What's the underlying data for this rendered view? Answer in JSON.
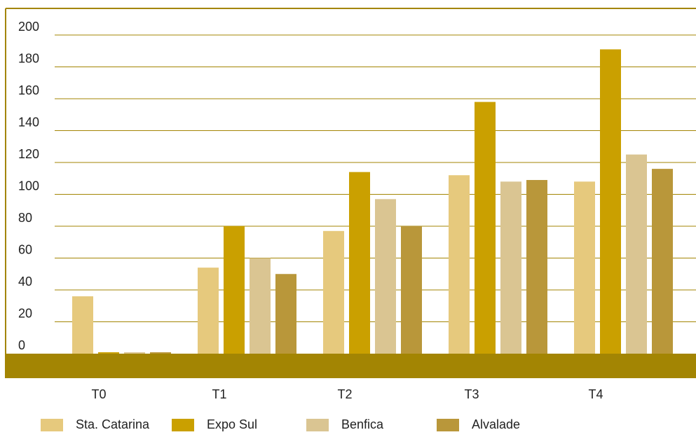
{
  "chart_data": {
    "type": "bar",
    "title": "",
    "xlabel": "",
    "ylabel": "",
    "categories": [
      "T0",
      "T1",
      "T2",
      "T3",
      "T4"
    ],
    "ylim": [
      0,
      200
    ],
    "yticks": [
      0,
      20,
      40,
      60,
      80,
      100,
      120,
      140,
      160,
      180,
      200
    ],
    "grid": true,
    "legend_position": "bottom",
    "series": [
      {
        "name": "Sta. Catarina",
        "color": "#e6c97d",
        "values": [
          36,
          54,
          77,
          112,
          108
        ]
      },
      {
        "name": "Expo Sul",
        "color": "#caa000",
        "values": [
          0,
          80,
          114,
          158,
          191
        ]
      },
      {
        "name": "Benfica",
        "color": "#dac592",
        "values": [
          0,
          60,
          97,
          108,
          125
        ]
      },
      {
        "name": "Alvalade",
        "color": "#b9973a",
        "values": [
          0,
          50,
          80,
          109,
          116
        ]
      }
    ]
  },
  "colors": {
    "frame": "#a38503",
    "baseline_band": "#a38503",
    "gridline": "#a38503",
    "text": "#222222"
  }
}
